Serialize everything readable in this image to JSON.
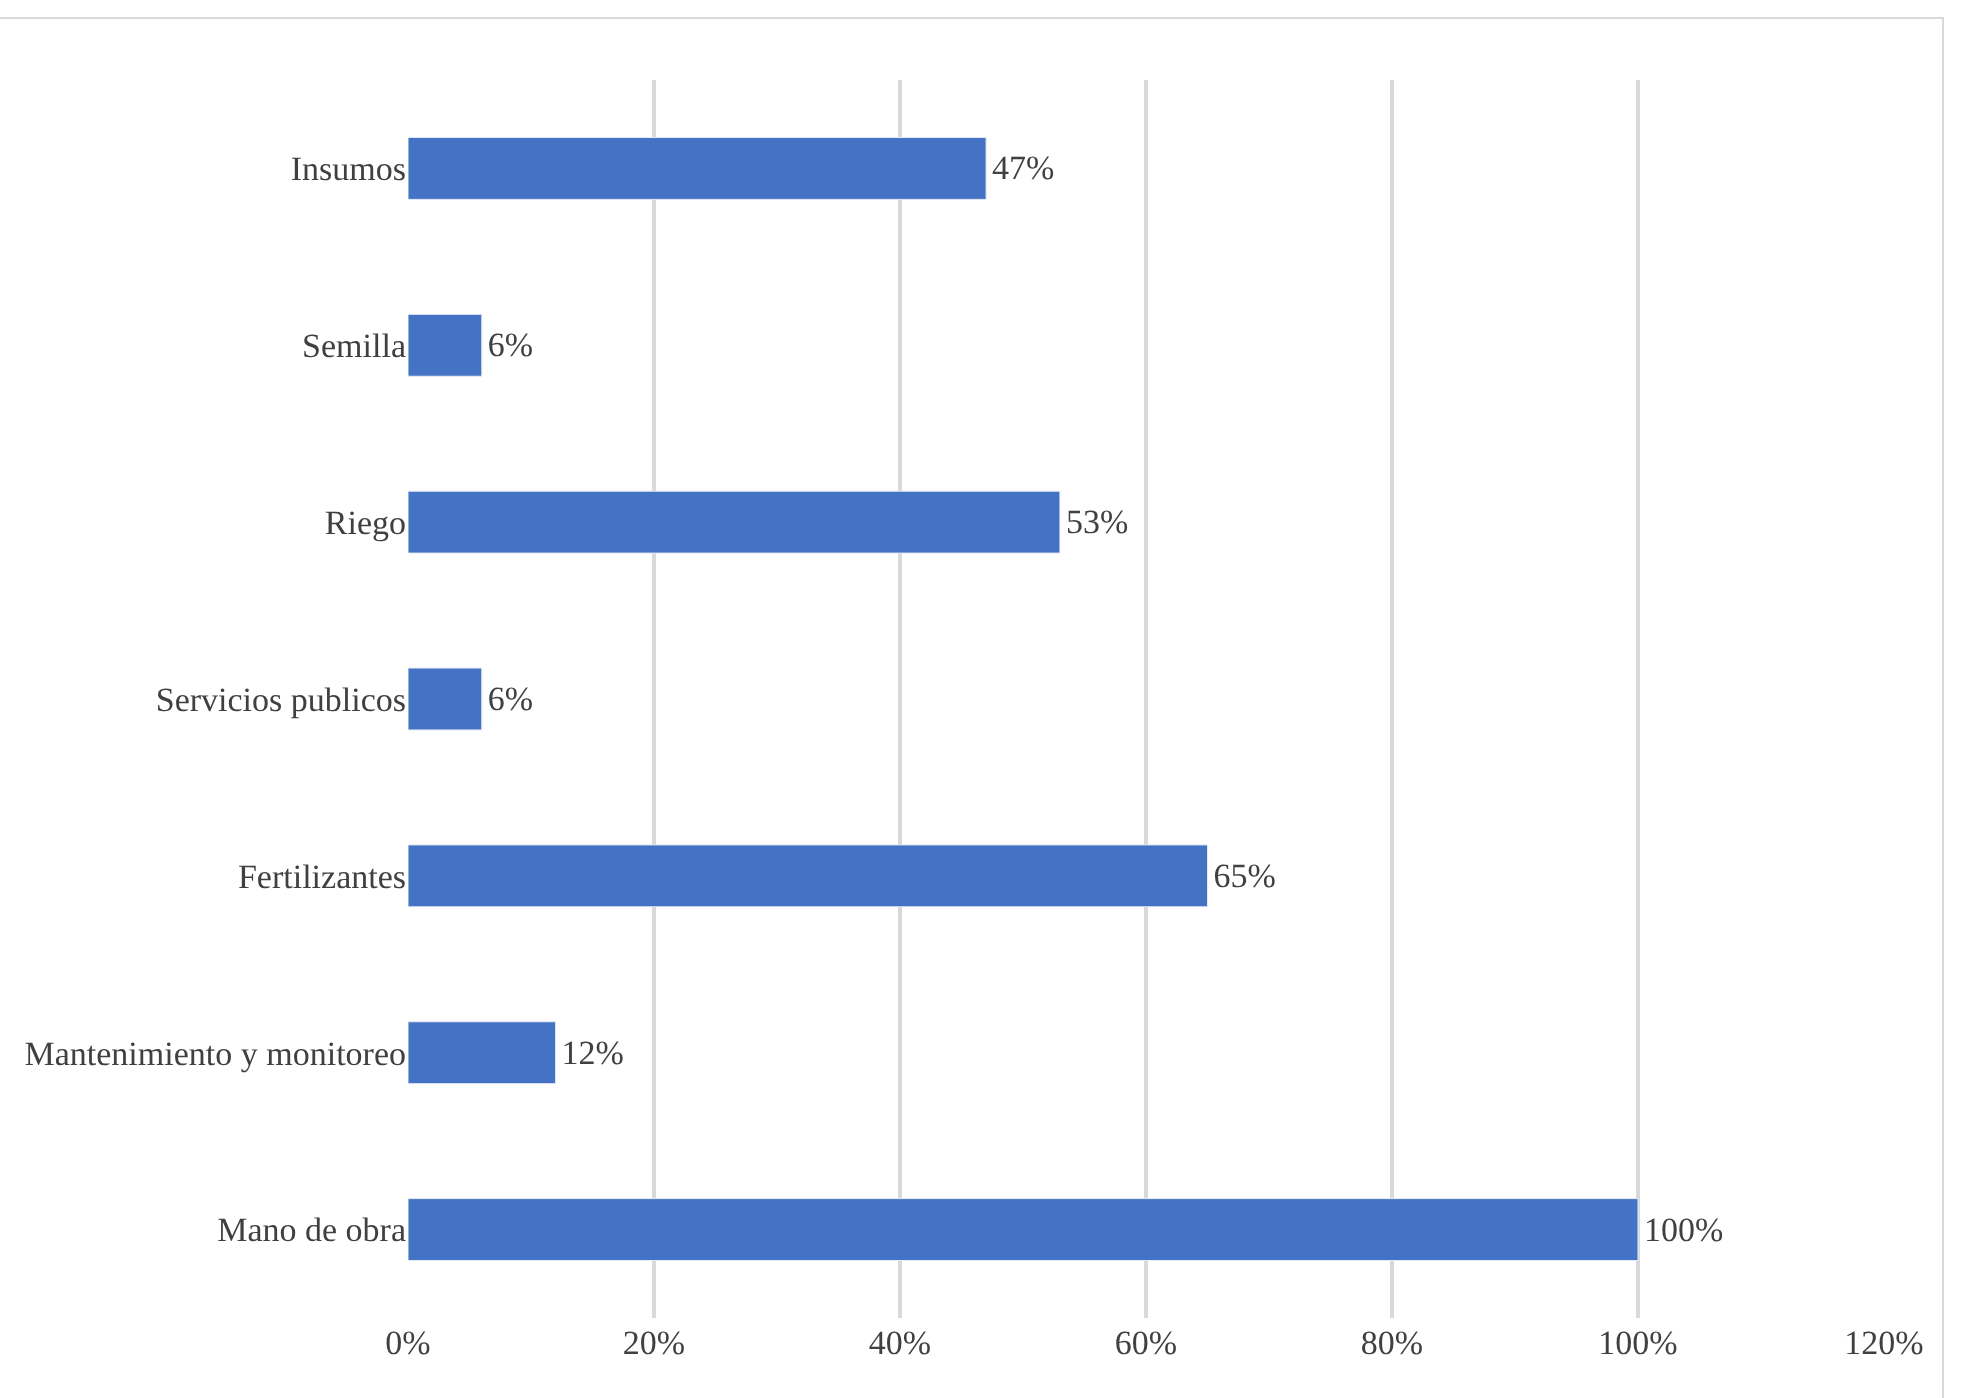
{
  "chart_data": {
    "type": "bar",
    "orientation": "horizontal",
    "categories": [
      "Insumos",
      "Semilla",
      "Riego",
      "Servicios publicos",
      "Fertilizantes",
      "Mantenimiento y monitoreo",
      "Mano de obra"
    ],
    "values": [
      47,
      6,
      53,
      6,
      65,
      12,
      100
    ],
    "value_labels": [
      "47%",
      "6%",
      "53%",
      "6%",
      "65%",
      "12%",
      "100%"
    ],
    "color": "#4472c4",
    "xlim": [
      0,
      120
    ],
    "xticks": [
      {
        "value": 0,
        "label": "0%"
      },
      {
        "value": 20,
        "label": "20%"
      },
      {
        "value": 40,
        "label": "40%"
      },
      {
        "value": 60,
        "label": "60%"
      },
      {
        "value": 80,
        "label": "80%"
      },
      {
        "value": 100,
        "label": "100%"
      },
      {
        "value": 120,
        "label": "120%"
      }
    ],
    "grid": "x",
    "legend": false
  }
}
